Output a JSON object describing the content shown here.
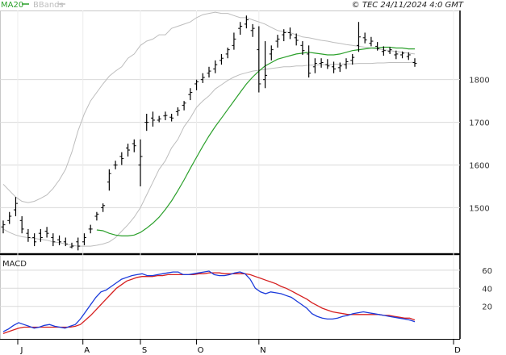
{
  "legend": {
    "ma_label": "MA20",
    "bb_label": "BBands"
  },
  "copyright": "© TEC 24/11/2024 4:0 GMT",
  "colors": {
    "candles": "#000000",
    "ma": "#2ba02b",
    "bbands": "#bdbdbd",
    "resistance": "#cc0000",
    "support": "#119911",
    "macd": "#1a3adb",
    "signal": "#d62020",
    "grid": "#d9d9d9"
  },
  "chart_data": [
    {
      "type": "candlestick",
      "title": "",
      "y_ticks": [
        1500,
        1600,
        1700,
        1800
      ],
      "ylim": [
        1395,
        1960
      ],
      "x_month_labels": [
        "J",
        "A",
        "S",
        "O",
        "N",
        "D"
      ],
      "ohlc": [
        [
          1455,
          1470,
          1440,
          1460
        ],
        [
          1470,
          1490,
          1462,
          1480
        ],
        [
          1495,
          1525,
          1480,
          1510
        ],
        [
          1470,
          1480,
          1440,
          1450
        ],
        [
          1440,
          1450,
          1420,
          1430
        ],
        [
          1430,
          1440,
          1410,
          1420
        ],
        [
          1440,
          1450,
          1420,
          1430
        ],
        [
          1445,
          1455,
          1430,
          1440
        ],
        [
          1430,
          1440,
          1410,
          1420
        ],
        [
          1425,
          1435,
          1412,
          1420
        ],
        [
          1420,
          1430,
          1410,
          1415
        ],
        [
          1408,
          1418,
          1405,
          1410
        ],
        [
          1420,
          1430,
          1400,
          1410
        ],
        [
          1420,
          1440,
          1412,
          1430
        ],
        [
          1450,
          1460,
          1440,
          1450
        ],
        [
          1480,
          1490,
          1470,
          1485
        ],
        [
          1500,
          1510,
          1490,
          1505
        ],
        [
          1560,
          1590,
          1540,
          1580
        ],
        [
          1600,
          1610,
          1590,
          1600
        ],
        [
          1620,
          1630,
          1600,
          1615
        ],
        [
          1640,
          1650,
          1620,
          1635
        ],
        [
          1650,
          1660,
          1630,
          1645
        ],
        [
          1600,
          1660,
          1550,
          1620
        ],
        [
          1700,
          1720,
          1680,
          1700
        ],
        [
          1710,
          1725,
          1690,
          1705
        ],
        [
          1705,
          1715,
          1700,
          1708
        ],
        [
          1715,
          1725,
          1705,
          1716
        ],
        [
          1712,
          1720,
          1702,
          1710
        ],
        [
          1725,
          1735,
          1715,
          1728
        ],
        [
          1740,
          1750,
          1728,
          1745
        ],
        [
          1765,
          1780,
          1752,
          1770
        ],
        [
          1790,
          1800,
          1775,
          1795
        ],
        [
          1800,
          1815,
          1792,
          1805
        ],
        [
          1815,
          1830,
          1805,
          1820
        ],
        [
          1825,
          1845,
          1815,
          1835
        ],
        [
          1845,
          1860,
          1835,
          1850
        ],
        [
          1860,
          1875,
          1850,
          1870
        ],
        [
          1880,
          1910,
          1870,
          1895
        ],
        [
          1920,
          1935,
          1905,
          1925
        ],
        [
          1930,
          1950,
          1920,
          1940
        ],
        [
          1915,
          1930,
          1900,
          1920
        ],
        [
          1870,
          1925,
          1770,
          1790
        ],
        [
          1800,
          1890,
          1780,
          1810
        ],
        [
          1860,
          1880,
          1845,
          1870
        ],
        [
          1890,
          1905,
          1875,
          1895
        ],
        [
          1905,
          1918,
          1890,
          1910
        ],
        [
          1910,
          1922,
          1895,
          1905
        ],
        [
          1898,
          1908,
          1880,
          1892
        ],
        [
          1880,
          1890,
          1858,
          1868
        ],
        [
          1860,
          1880,
          1805,
          1815
        ],
        [
          1830,
          1850,
          1815,
          1838
        ],
        [
          1838,
          1850,
          1828,
          1840
        ],
        [
          1835,
          1848,
          1825,
          1832
        ],
        [
          1830,
          1842,
          1815,
          1825
        ],
        [
          1828,
          1840,
          1818,
          1832
        ],
        [
          1835,
          1850,
          1825,
          1842
        ],
        [
          1845,
          1860,
          1835,
          1852
        ],
        [
          1880,
          1935,
          1865,
          1900
        ],
        [
          1898,
          1910,
          1885,
          1893
        ],
        [
          1885,
          1900,
          1878,
          1890
        ],
        [
          1878,
          1888,
          1868,
          1873
        ],
        [
          1866,
          1878,
          1856,
          1868
        ],
        [
          1866,
          1876,
          1860,
          1870
        ],
        [
          1858,
          1868,
          1848,
          1860
        ],
        [
          1858,
          1866,
          1850,
          1862
        ],
        [
          1854,
          1864,
          1846,
          1858
        ],
        [
          1840,
          1850,
          1830,
          1838
        ]
      ],
      "ma20": [
        1448,
        1446,
        1440,
        1436,
        1434,
        1434,
        1436,
        1442,
        1452,
        1464,
        1478,
        1496,
        1516,
        1540,
        1565,
        1592,
        1618,
        1644,
        1668,
        1690,
        1710,
        1730,
        1750,
        1770,
        1790,
        1806,
        1820,
        1832,
        1840,
        1848,
        1852,
        1856,
        1860,
        1862,
        1864,
        1862,
        1860,
        1858,
        1858,
        1860,
        1864,
        1868,
        1870,
        1872,
        1874,
        1874,
        1876,
        1876,
        1874,
        1874,
        1872,
        1872
      ],
      "bb_upper": [
        1555,
        1540,
        1525,
        1515,
        1512,
        1515,
        1522,
        1530,
        1545,
        1565,
        1590,
        1630,
        1680,
        1720,
        1750,
        1770,
        1790,
        1808,
        1820,
        1830,
        1850,
        1860,
        1880,
        1890,
        1895,
        1905,
        1905,
        1920,
        1925,
        1930,
        1935,
        1945,
        1952,
        1955,
        1958,
        1955,
        1955,
        1950,
        1945,
        1945,
        1940,
        1935,
        1930,
        1922,
        1915,
        1912,
        1910,
        1905,
        1900,
        1898,
        1895,
        1892,
        1890,
        1887,
        1885,
        1882,
        1880,
        1878,
        1876,
        1874,
        1872,
        1870,
        1868,
        1866,
        1864,
        1862,
        1860
      ],
      "bb_lower": [
        1450,
        1442,
        1436,
        1432,
        1430,
        1428,
        1426,
        1424,
        1420,
        1418,
        1415,
        1412,
        1410,
        1410,
        1410,
        1412,
        1415,
        1420,
        1430,
        1445,
        1460,
        1478,
        1500,
        1530,
        1560,
        1590,
        1610,
        1640,
        1660,
        1690,
        1710,
        1735,
        1750,
        1762,
        1778,
        1788,
        1798,
        1806,
        1812,
        1816,
        1820,
        1822,
        1824,
        1826,
        1828,
        1830,
        1830,
        1832,
        1832,
        1834,
        1834,
        1835,
        1835,
        1836,
        1836,
        1837,
        1837,
        1838,
        1838,
        1838,
        1839,
        1839,
        1840,
        1840,
        1840,
        1840,
        1841
      ]
    },
    {
      "type": "line",
      "title": "MACD",
      "y_ticks": [
        20,
        40,
        60
      ],
      "ylim": [
        -15,
        75
      ],
      "series": [
        {
          "values": [
            -8,
            -5,
            -1,
            2,
            0,
            -2,
            -4,
            -3,
            -1,
            0,
            -2,
            -3,
            -4,
            -2,
            0,
            6,
            14,
            22,
            30,
            36,
            38,
            42,
            46,
            50,
            52,
            54,
            55,
            56,
            54,
            54,
            55,
            56,
            57,
            58,
            58,
            55,
            55,
            56,
            57,
            58,
            59,
            55,
            54,
            54,
            55,
            57,
            58,
            56,
            50,
            40,
            36,
            34,
            36,
            35,
            34,
            32,
            30,
            26,
            22,
            18,
            12,
            9,
            7,
            6,
            6,
            7,
            9,
            10,
            12,
            13,
            14,
            13,
            12,
            11,
            10,
            9,
            8,
            7,
            6,
            5,
            3
          ]
        },
        {
          "values": [
            -10,
            -8,
            -6,
            -4,
            -3,
            -3,
            -3,
            -3,
            -3,
            -3,
            -3,
            -3,
            -3,
            -3,
            -2,
            0,
            5,
            10,
            16,
            22,
            28,
            34,
            40,
            44,
            48,
            50,
            52,
            53,
            53,
            53,
            54,
            54,
            55,
            55,
            55,
            55,
            55,
            55,
            56,
            56,
            57,
            57,
            57,
            56,
            56,
            56,
            56,
            56,
            55,
            53,
            51,
            49,
            47,
            45,
            42,
            40,
            37,
            34,
            31,
            28,
            24,
            21,
            18,
            16,
            14,
            13,
            12,
            11,
            11,
            11,
            11,
            11,
            11,
            11,
            10,
            10,
            9,
            8,
            7,
            7,
            5
          ]
        }
      ]
    }
  ]
}
